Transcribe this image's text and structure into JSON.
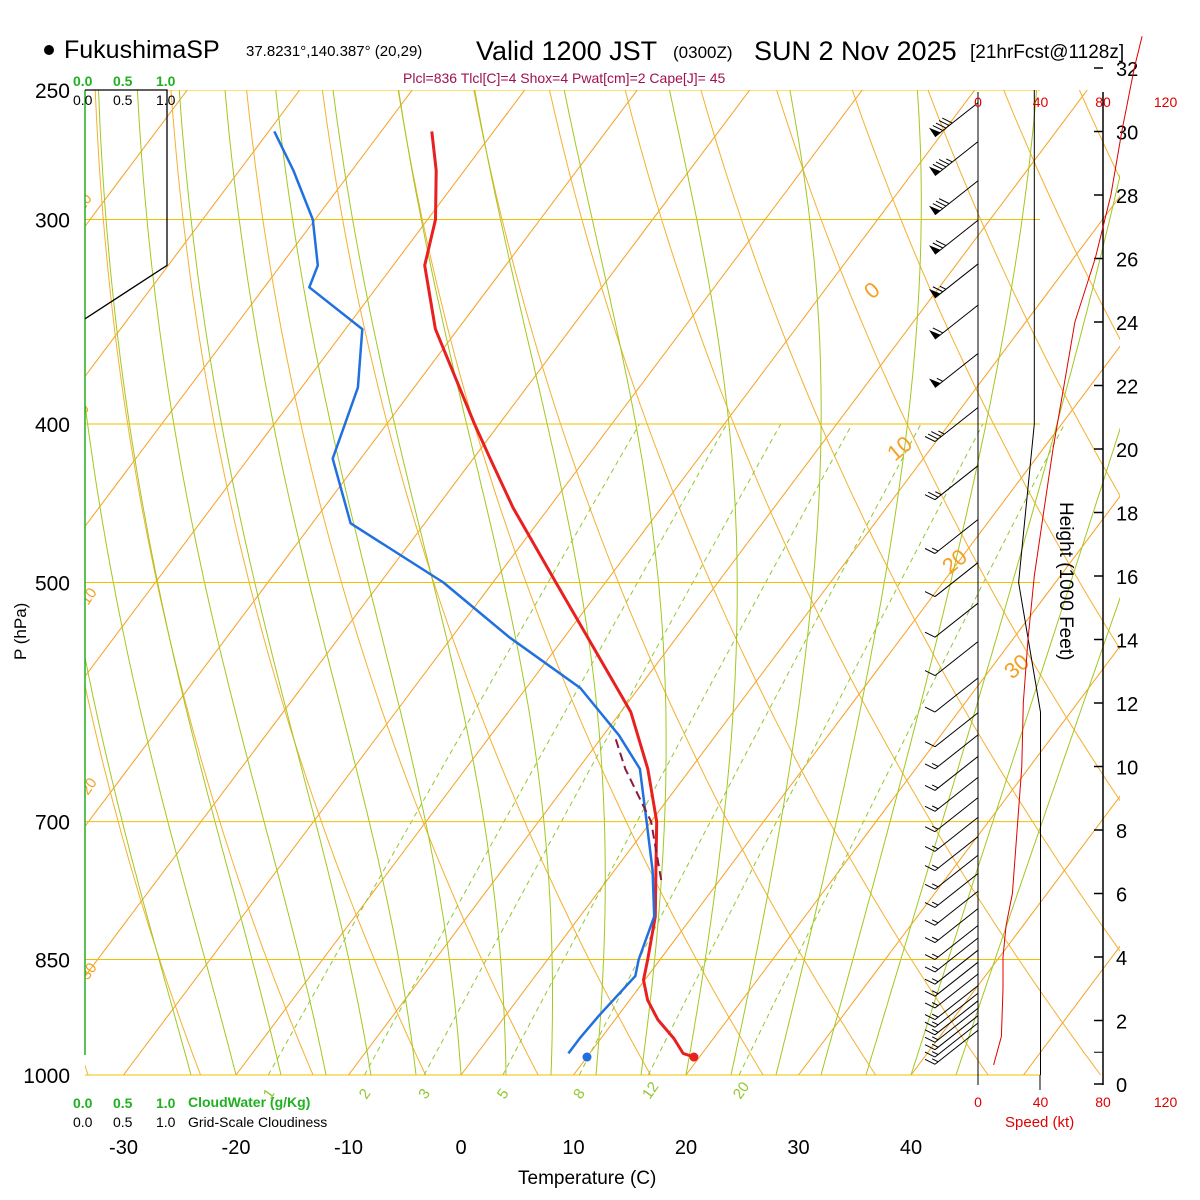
{
  "header": {
    "station": "FukushimaSP",
    "coords": "37.8231°,140.387° (20,29)",
    "valid_label": "Valid 1200 JST",
    "utc": "(0300Z)",
    "date": "SUN 2 Nov 2025",
    "run": "[21hrFcst@1128z]",
    "indices": "Plcl=836 Tlcl[C]=4 Shox=4 Pwat[cm]=2 Cape[J]= 45"
  },
  "colors": {
    "isobar": "#f0c000",
    "isotherm": "#f5a020",
    "dry_adiabat": "#f5b030",
    "moist_adiabat": "#a0c820",
    "mixing_ratio": "#90c830",
    "temperature": "#e82020",
    "dewpoint": "#2070e0",
    "parcel": "#8b1a40",
    "cloud": "#20b020",
    "speed": "#e00000",
    "indices": "#a01050"
  },
  "chart_data": {
    "type": "line",
    "title": "FukushimaSP Valid 1200 JST (0300Z) SUN 2 Nov 2025",
    "xlabel": "Temperature (C)",
    "ylabel": "P (hPa)",
    "y2label": "Height (1000 Feet)",
    "skew_ref_pressure": 1000,
    "xlim": [
      -34,
      46
    ],
    "pressure_levels": [
      250,
      300,
      400,
      500,
      700,
      850,
      1000
    ],
    "pressure_ticks": [
      "250",
      "300",
      "400",
      "500",
      "700",
      "850",
      "1000"
    ],
    "x_ticks": [
      -30,
      -20,
      -10,
      0,
      10,
      20,
      30,
      40
    ],
    "x_tick_labels": [
      "-30",
      "-20",
      "-10",
      "0",
      "10",
      "20",
      "30",
      "40"
    ],
    "height_ticks": [
      0,
      2,
      4,
      6,
      8,
      10,
      12,
      14,
      16,
      18,
      20,
      22,
      24,
      26,
      28,
      30,
      32
    ],
    "height_tick_labels": [
      "0",
      "2",
      "4",
      "6",
      "8",
      "10",
      "12",
      "14",
      "16",
      "18",
      "20",
      "22",
      "24",
      "26",
      "28",
      "30",
      "32"
    ],
    "isotherm_labels": [
      "10",
      "0",
      "-10",
      "-20",
      "-30",
      "0",
      "10",
      "20",
      "30"
    ],
    "mixing_ratio_values": [
      1,
      2,
      3,
      5,
      8,
      12,
      20
    ],
    "mixing_ratio_labels": [
      "1",
      "2",
      "3",
      "5",
      "8",
      "12",
      "20"
    ],
    "series": [
      {
        "name": "Temperature",
        "points": [
          [
            975,
            19.5
          ],
          [
            970,
            18.3
          ],
          [
            950,
            16.5
          ],
          [
            925,
            13.8
          ],
          [
            900,
            11.6
          ],
          [
            875,
            9.9
          ],
          [
            850,
            8.9
          ],
          [
            800,
            6.7
          ],
          [
            750,
            3.7
          ],
          [
            700,
            0.5
          ],
          [
            650,
            -3.8
          ],
          [
            600,
            -9.1
          ],
          [
            550,
            -16.4
          ],
          [
            500,
            -24.4
          ],
          [
            450,
            -33.2
          ],
          [
            420,
            -38.5
          ],
          [
            400,
            -42.2
          ],
          [
            350,
            -52.0
          ],
          [
            320,
            -57.2
          ],
          [
            300,
            -59.3
          ],
          [
            280,
            -62.5
          ],
          [
            265,
            -65.5
          ]
        ]
      },
      {
        "name": "Dewpoint",
        "points": [
          [
            970,
            8.1
          ],
          [
            950,
            8.1
          ],
          [
            920,
            8.3
          ],
          [
            870,
            8.9
          ],
          [
            850,
            8.1
          ],
          [
            800,
            6.6
          ],
          [
            750,
            3.4
          ],
          [
            700,
            -0.4
          ],
          [
            650,
            -4.5
          ],
          [
            620,
            -8.6
          ],
          [
            580,
            -15.2
          ],
          [
            540,
            -24.9
          ],
          [
            500,
            -34.4
          ],
          [
            460,
            -46.6
          ],
          [
            420,
            -52.5
          ],
          [
            380,
            -55.0
          ],
          [
            350,
            -58.5
          ],
          [
            330,
            -66.0
          ],
          [
            320,
            -66.7
          ],
          [
            300,
            -70.2
          ],
          [
            280,
            -75.2
          ],
          [
            265,
            -79.5
          ]
        ]
      },
      {
        "name": "Parcel",
        "points": [
          [
            760,
            4.8
          ],
          [
            700,
            0.0
          ],
          [
            650,
            -5.8
          ],
          [
            620,
            -9.0
          ]
        ]
      }
    ],
    "surface_temperature": 19.5,
    "surface_dewpoint": 10.0,
    "cloud_water_axis": [
      "0.0",
      "0.5",
      "1.0"
    ],
    "cloudiness_axis": [
      "0.0",
      "0.5",
      "1.0"
    ],
    "cloud_water_label": "CloudWater (g/Kg)",
    "cloudiness_label": "Grid-Scale Cloudiness",
    "cloudiness_profile": [
      [
        250,
        0.0
      ],
      [
        250,
        1.0
      ],
      [
        320,
        1.0
      ],
      [
        345,
        0.0
      ]
    ],
    "speed_axis": [
      0,
      40,
      80,
      120
    ],
    "speed_label": "Speed (kt)",
    "wind_speed_profile": [
      [
        0.6,
        10
      ],
      [
        1.5,
        15
      ],
      [
        3,
        16
      ],
      [
        4,
        16
      ],
      [
        5,
        18
      ],
      [
        6,
        22
      ],
      [
        8,
        25
      ],
      [
        10,
        28
      ],
      [
        12,
        29
      ],
      [
        14,
        32
      ],
      [
        16,
        36
      ],
      [
        18,
        42
      ],
      [
        20,
        48
      ],
      [
        22,
        55
      ],
      [
        24,
        62
      ],
      [
        26,
        75
      ],
      [
        28,
        85
      ],
      [
        30,
        92
      ],
      [
        32,
        100
      ],
      [
        33,
        105
      ]
    ],
    "max_wind_envelope": [
      [
        250,
        36
      ],
      [
        400,
        36
      ],
      [
        500,
        26
      ],
      [
        600,
        40
      ],
      [
        1000,
        40
      ]
    ],
    "wind_barbs": [
      {
        "p": 985,
        "speed": 15
      },
      {
        "p": 975,
        "speed": 15
      },
      {
        "p": 965,
        "speed": 15
      },
      {
        "p": 955,
        "speed": 15
      },
      {
        "p": 945,
        "speed": 15
      },
      {
        "p": 935,
        "speed": 15
      },
      {
        "p": 925,
        "speed": 15
      },
      {
        "p": 910,
        "speed": 15
      },
      {
        "p": 895,
        "speed": 15
      },
      {
        "p": 880,
        "speed": 15
      },
      {
        "p": 865,
        "speed": 15
      },
      {
        "p": 850,
        "speed": 15
      },
      {
        "p": 830,
        "speed": 15
      },
      {
        "p": 810,
        "speed": 15
      },
      {
        "p": 790,
        "speed": 15
      },
      {
        "p": 770,
        "speed": 15
      },
      {
        "p": 750,
        "speed": 15
      },
      {
        "p": 730,
        "speed": 15
      },
      {
        "p": 710,
        "speed": 15
      },
      {
        "p": 690,
        "speed": 15
      },
      {
        "p": 670,
        "speed": 15
      },
      {
        "p": 650,
        "speed": 15
      },
      {
        "p": 630,
        "speed": 10
      },
      {
        "p": 600,
        "speed": 10
      },
      {
        "p": 570,
        "speed": 10
      },
      {
        "p": 540,
        "speed": 10
      },
      {
        "p": 510,
        "speed": 10
      },
      {
        "p": 480,
        "speed": 15
      },
      {
        "p": 445,
        "speed": 25
      },
      {
        "p": 410,
        "speed": 35
      },
      {
        "p": 380,
        "speed": 55
      },
      {
        "p": 355,
        "speed": 60
      },
      {
        "p": 335,
        "speed": 65
      },
      {
        "p": 315,
        "speed": 70
      },
      {
        "p": 298,
        "speed": 80
      },
      {
        "p": 282,
        "speed": 85
      },
      {
        "p": 267,
        "speed": 90
      }
    ]
  }
}
